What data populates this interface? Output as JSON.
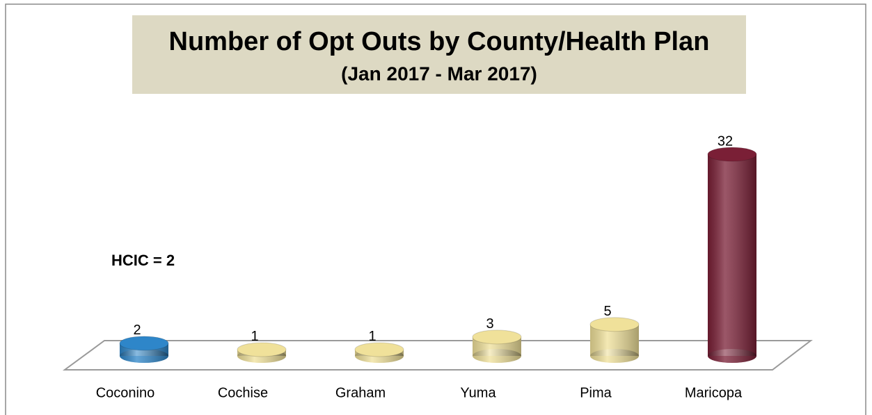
{
  "chart_data": {
    "type": "bar3d",
    "title": "Number of Opt Outs by County/Health Plan",
    "subtitle": "(Jan 2017 - Mar 2017)",
    "annotation": "HCIC = 2",
    "categories": [
      "Coconino",
      "Cochise",
      "Graham",
      "Yuma",
      "Pima",
      "Maricopa"
    ],
    "values": [
      2,
      1,
      1,
      3,
      5,
      32
    ],
    "colors": [
      "#2e86c9",
      "#f0e19a",
      "#f0e19a",
      "#f0e19a",
      "#f0e19a",
      "#7a1f36"
    ]
  }
}
